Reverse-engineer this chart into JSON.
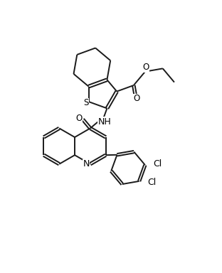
{
  "background_color": "#ffffff",
  "line_color": "#1a1a1a",
  "line_width": 1.4,
  "text_color": "#000000",
  "font_size": 8.5,
  "figsize": [
    3.12,
    3.84
  ],
  "dpi": 100,
  "xlim": [
    0,
    9.5
  ],
  "ylim": [
    0,
    11.5
  ]
}
